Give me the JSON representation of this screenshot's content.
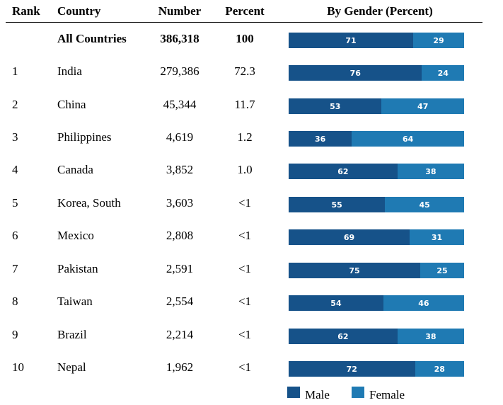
{
  "headers": {
    "rank": "Rank",
    "country": "Country",
    "number": "Number",
    "percent": "Percent",
    "gender": "By Gender (Percent)"
  },
  "colors": {
    "male": "#165289",
    "female": "#1f7ab3"
  },
  "legend": {
    "male": "Male",
    "female": "Female"
  },
  "rows": [
    {
      "rank": "",
      "country": "All Countries",
      "number": "386,318",
      "percent": "100",
      "male": "71",
      "female": "29",
      "bold": true
    },
    {
      "rank": "1",
      "country": "India",
      "number": "279,386",
      "percent": "72.3",
      "male": "76",
      "female": "24"
    },
    {
      "rank": "2",
      "country": "China",
      "number": "45,344",
      "percent": "11.7",
      "male": "53",
      "female": "47"
    },
    {
      "rank": "3",
      "country": "Philippines",
      "number": "4,619",
      "percent": "1.2",
      "male": "36",
      "female": "64"
    },
    {
      "rank": "4",
      "country": "Canada",
      "number": "3,852",
      "percent": "1.0",
      "male": "62",
      "female": "38"
    },
    {
      "rank": "5",
      "country": "Korea, South",
      "number": "3,603",
      "percent": "<1",
      "male": "55",
      "female": "45"
    },
    {
      "rank": "6",
      "country": "Mexico",
      "number": "2,808",
      "percent": "<1",
      "male": "69",
      "female": "31"
    },
    {
      "rank": "7",
      "country": "Pakistan",
      "number": "2,591",
      "percent": "<1",
      "male": "75",
      "female": "25"
    },
    {
      "rank": "8",
      "country": "Taiwan",
      "number": "2,554",
      "percent": "<1",
      "male": "54",
      "female": "46"
    },
    {
      "rank": "9",
      "country": "Brazil",
      "number": "2,214",
      "percent": "<1",
      "male": "62",
      "female": "38"
    },
    {
      "rank": "10",
      "country": "Nepal",
      "number": "1,962",
      "percent": "<1",
      "male": "72",
      "female": "28"
    }
  ],
  "chart_data": {
    "type": "bar",
    "categories": [
      "All Countries",
      "India",
      "China",
      "Philippines",
      "Canada",
      "Korea, South",
      "Mexico",
      "Pakistan",
      "Taiwan",
      "Brazil",
      "Nepal"
    ],
    "series": [
      {
        "name": "Male",
        "values": [
          71,
          76,
          53,
          36,
          62,
          55,
          69,
          75,
          54,
          62,
          72
        ]
      },
      {
        "name": "Female",
        "values": [
          29,
          24,
          47,
          64,
          38,
          45,
          31,
          25,
          46,
          38,
          28
        ]
      }
    ],
    "title": "By Gender (Percent)",
    "stacked": true,
    "orientation": "horizontal",
    "legend": "bottom"
  }
}
